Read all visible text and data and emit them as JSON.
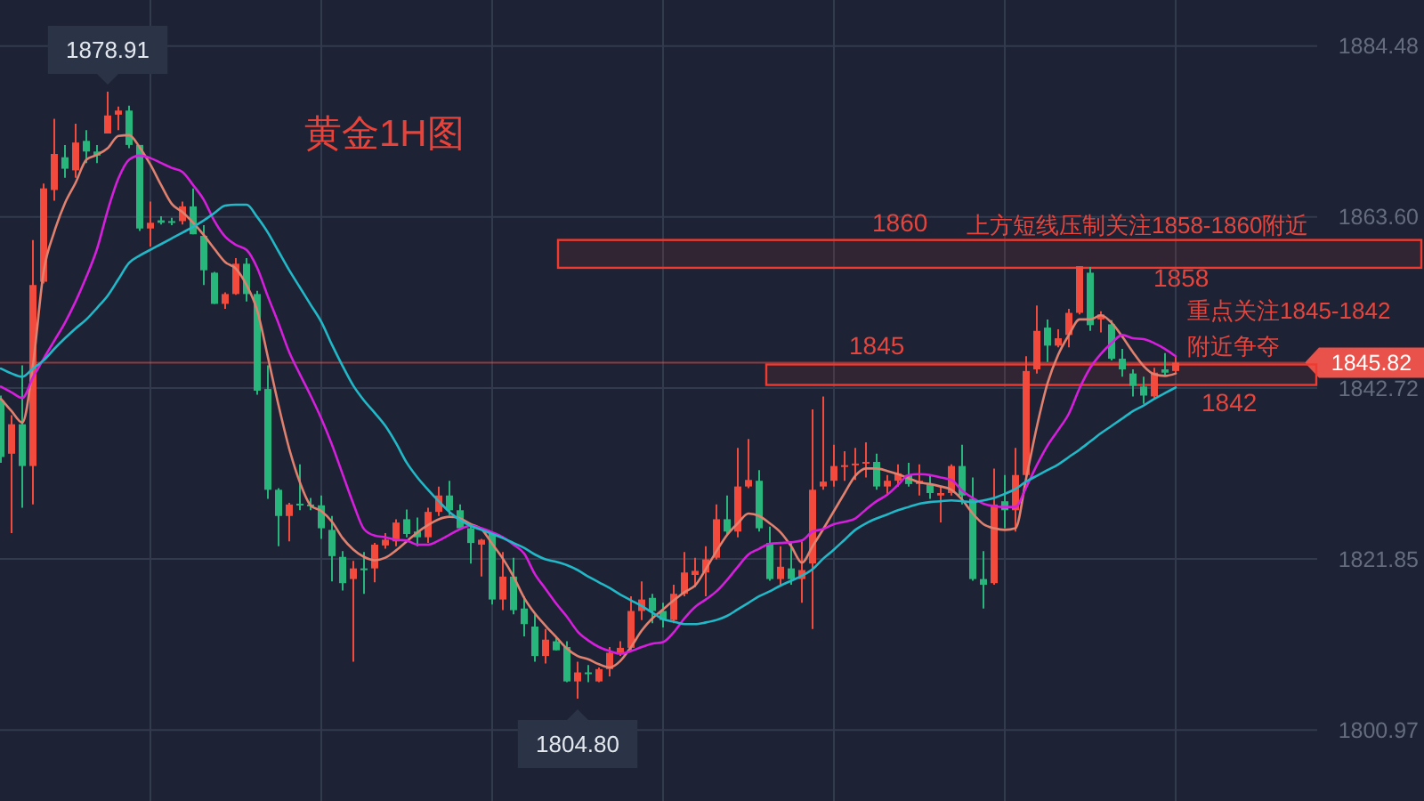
{
  "chart_data": {
    "type": "candlestick",
    "title": "黄金1H图",
    "categories": [
      null,
      null,
      null,
      null,
      null,
      null,
      null,
      null,
      null,
      null,
      null,
      null,
      null,
      null,
      null,
      null,
      null,
      null,
      null,
      null,
      null,
      null,
      null,
      null,
      null,
      null,
      null,
      null,
      null,
      null,
      null,
      null,
      null,
      null,
      null,
      null,
      null,
      null,
      null,
      null,
      null,
      null,
      null,
      null,
      null,
      null,
      null,
      null,
      null,
      null,
      null,
      null,
      null,
      null,
      null,
      null,
      null,
      null,
      null,
      null,
      null,
      null,
      null,
      null,
      null,
      null,
      null,
      null,
      null,
      null,
      null,
      null,
      null,
      null,
      null,
      null,
      null,
      null,
      null,
      null,
      null,
      null,
      null,
      null,
      null,
      null,
      null,
      null,
      null,
      null,
      null,
      null,
      null,
      null,
      null,
      null,
      null,
      null,
      null,
      null,
      null,
      null,
      null,
      null,
      null,
      null,
      null,
      null,
      null,
      null,
      null
    ],
    "ohlc": [
      [
        1841.2,
        1841.8,
        1833.6,
        1834.3
      ],
      [
        1834.7,
        1839.4,
        1825.0,
        1838.3
      ],
      [
        1838.3,
        1845.5,
        1828.1,
        1833.2
      ],
      [
        1833.2,
        1860.8,
        1828.5,
        1855.3
      ],
      [
        1855.7,
        1867.7,
        1855.5,
        1867.1
      ],
      [
        1866.9,
        1875.6,
        1865.6,
        1871.3
      ],
      [
        1870.9,
        1872.4,
        1868.4,
        1869.5
      ],
      [
        1869.3,
        1875.0,
        1868.4,
        1872.7
      ],
      [
        1872.9,
        1874.2,
        1870.2,
        1871.6
      ],
      [
        1871.6,
        1872.4,
        1870.2,
        1871.1
      ],
      [
        1873.8,
        1878.91,
        1873.8,
        1876.0
      ],
      [
        1876.1,
        1877.1,
        1874.2,
        1876.6
      ],
      [
        1876.6,
        1877.2,
        1872.0,
        1872.4
      ],
      [
        1872.4,
        1872.4,
        1861.9,
        1862.2
      ],
      [
        1862.2,
        1865.5,
        1860.0,
        1862.9
      ],
      [
        1863.2,
        1863.7,
        1862.7,
        1862.9
      ],
      [
        1863.1,
        1863.5,
        1862.6,
        1863.0
      ],
      [
        1863.1,
        1865.5,
        1862.7,
        1864.9
      ],
      [
        1864.9,
        1867.1,
        1861.5,
        1861.5
      ],
      [
        1861.3,
        1862.6,
        1855.3,
        1857.1
      ],
      [
        1856.8,
        1856.9,
        1853.0,
        1853.0
      ],
      [
        1853.0,
        1854.4,
        1852.4,
        1854.2
      ],
      [
        1854.2,
        1858.6,
        1854.1,
        1857.9
      ],
      [
        1857.9,
        1858.6,
        1853.3,
        1854.2
      ],
      [
        1854.2,
        1854.6,
        1841.9,
        1842.4
      ],
      [
        1842.6,
        1845.5,
        1829.2,
        1830.3
      ],
      [
        1830.3,
        1830.5,
        1823.4,
        1827.1
      ],
      [
        1827.1,
        1828.7,
        1824.0,
        1828.5
      ],
      [
        1828.6,
        1833.4,
        1827.8,
        1828.5
      ],
      [
        1828.5,
        1829.3,
        1827.8,
        1828.4
      ],
      [
        1828.4,
        1829.6,
        1824.3,
        1825.6
      ],
      [
        1825.4,
        1827.1,
        1819.1,
        1822.2
      ],
      [
        1822.1,
        1822.8,
        1818.0,
        1818.9
      ],
      [
        1819.4,
        1821.6,
        1809.3,
        1820.7
      ],
      [
        1820.7,
        1822.7,
        1817.6,
        1820.6
      ],
      [
        1820.7,
        1823.8,
        1819.0,
        1823.6
      ],
      [
        1823.5,
        1825.0,
        1823.1,
        1824.2
      ],
      [
        1824.0,
        1826.7,
        1823.4,
        1826.3
      ],
      [
        1826.7,
        1827.9,
        1824.5,
        1824.9
      ],
      [
        1825.2,
        1826.9,
        1823.4,
        1824.5
      ],
      [
        1824.5,
        1828.1,
        1823.8,
        1827.6
      ],
      [
        1827.6,
        1830.7,
        1827.1,
        1829.6
      ],
      [
        1829.6,
        1831.4,
        1827.2,
        1827.8
      ],
      [
        1827.8,
        1828.5,
        1825.5,
        1825.6
      ],
      [
        1825.6,
        1825.8,
        1821.3,
        1823.8
      ],
      [
        1823.6,
        1824.3,
        1819.7,
        1824.2
      ],
      [
        1825.0,
        1825.2,
        1816.3,
        1816.9
      ],
      [
        1816.9,
        1822.7,
        1815.6,
        1819.7
      ],
      [
        1819.7,
        1822.0,
        1815.1,
        1815.6
      ],
      [
        1815.8,
        1817.3,
        1812.4,
        1813.9
      ],
      [
        1813.6,
        1815.1,
        1809.3,
        1810.0
      ],
      [
        1810.0,
        1813.3,
        1809.1,
        1812.0
      ],
      [
        1811.8,
        1812.2,
        1810.7,
        1810.7
      ],
      [
        1811.1,
        1811.8,
        1806.8,
        1806.9
      ],
      [
        1806.9,
        1809.3,
        1804.8,
        1808.0
      ],
      [
        1808.0,
        1808.9,
        1806.8,
        1807.8
      ],
      [
        1806.9,
        1808.6,
        1806.8,
        1808.4
      ],
      [
        1808.4,
        1811.1,
        1807.5,
        1810.4
      ],
      [
        1810.2,
        1811.8,
        1810.0,
        1811.0
      ],
      [
        1811.0,
        1817.3,
        1810.7,
        1815.5
      ],
      [
        1815.5,
        1819.1,
        1814.4,
        1816.9
      ],
      [
        1817.1,
        1817.6,
        1814.0,
        1815.5
      ],
      [
        1815.5,
        1816.5,
        1813.5,
        1814.4
      ],
      [
        1814.4,
        1818.7,
        1814.0,
        1817.6
      ],
      [
        1817.6,
        1822.7,
        1817.3,
        1820.2
      ],
      [
        1819.9,
        1822.0,
        1818.4,
        1820.4
      ],
      [
        1820.2,
        1823.4,
        1817.3,
        1821.8
      ],
      [
        1822.0,
        1828.5,
        1821.8,
        1826.7
      ],
      [
        1826.7,
        1829.6,
        1824.9,
        1825.2
      ],
      [
        1825.2,
        1835.4,
        1824.5,
        1830.7
      ],
      [
        1830.7,
        1836.5,
        1830.5,
        1831.5
      ],
      [
        1831.4,
        1832.7,
        1825.2,
        1825.6
      ],
      [
        1823.8,
        1825.8,
        1819.2,
        1819.4
      ],
      [
        1819.4,
        1823.4,
        1818.7,
        1820.9
      ],
      [
        1820.7,
        1823.8,
        1818.7,
        1819.4
      ],
      [
        1819.4,
        1824.0,
        1816.5,
        1820.5
      ],
      [
        1821.3,
        1840.1,
        1813.3,
        1830.3
      ],
      [
        1830.7,
        1841.7,
        1830.3,
        1831.3
      ],
      [
        1831.4,
        1835.8,
        1830.7,
        1833.2
      ],
      [
        1833.1,
        1835.0,
        1831.4,
        1833.3
      ],
      [
        1833.3,
        1835.4,
        1831.5,
        1833.5
      ],
      [
        1833.6,
        1836.1,
        1831.8,
        1833.7
      ],
      [
        1833.7,
        1834.7,
        1830.3,
        1830.7
      ],
      [
        1830.7,
        1832.1,
        1829.6,
        1831.4
      ],
      [
        1831.4,
        1833.4,
        1830.7,
        1832.3
      ],
      [
        1832.1,
        1833.6,
        1830.7,
        1831.0
      ],
      [
        1831.0,
        1833.4,
        1829.6,
        1831.4
      ],
      [
        1831.0,
        1832.1,
        1829.2,
        1829.9
      ],
      [
        1829.6,
        1830.7,
        1826.3,
        1829.9
      ],
      [
        1829.9,
        1833.4,
        1829.6,
        1833.2
      ],
      [
        1833.2,
        1835.8,
        1828.5,
        1829.6
      ],
      [
        1829.2,
        1831.8,
        1819.2,
        1819.4
      ],
      [
        1819.4,
        1822.8,
        1815.8,
        1818.7
      ],
      [
        1818.9,
        1832.9,
        1818.7,
        1828.5
      ],
      [
        1828.9,
        1832.1,
        1825.6,
        1827.8
      ],
      [
        1827.8,
        1835.4,
        1825.2,
        1832.1
      ],
      [
        1832.1,
        1846.6,
        1831.8,
        1844.8
      ],
      [
        1845.0,
        1852.8,
        1844.5,
        1849.7
      ],
      [
        1850.1,
        1851.1,
        1845.9,
        1847.9
      ],
      [
        1847.9,
        1849.9,
        1847.7,
        1848.8
      ],
      [
        1849.2,
        1852.4,
        1847.7,
        1851.9
      ],
      [
        1851.9,
        1857.6,
        1851.7,
        1857.6
      ],
      [
        1856.8,
        1857.5,
        1849.7,
        1850.4
      ],
      [
        1851.1,
        1852.1,
        1849.5,
        1851.7
      ],
      [
        1850.5,
        1851.0,
        1846.1,
        1846.3
      ],
      [
        1846.3,
        1847.5,
        1844.1,
        1845.0
      ],
      [
        1844.5,
        1845.0,
        1841.7,
        1843.0
      ],
      [
        1842.9,
        1844.1,
        1840.8,
        1841.8
      ],
      [
        1841.7,
        1845.2,
        1841.5,
        1844.6
      ],
      [
        1845.0,
        1847.0,
        1844.3,
        1844.6
      ],
      [
        1844.8,
        1846.6,
        1844.6,
        1845.82
      ]
    ],
    "colors": [
      "#29b67c",
      "#f24a3d",
      "#29b67c",
      "#f24a3d",
      "#f24a3d",
      "#f24a3d",
      "#29b67c",
      "#f24a3d",
      "#29b67c",
      "#29b67c",
      "#f24a3d",
      "#f24a3d",
      "#29b67c",
      "#29b67c",
      "#f24a3d",
      "#29b67c",
      "#29b67c",
      "#f24a3d",
      "#29b67c",
      "#29b67c",
      "#29b67c",
      "#f24a3d",
      "#f24a3d",
      "#29b67c",
      "#29b67c",
      "#29b67c",
      "#29b67c",
      "#f24a3d",
      "#29b67c",
      "#29b67c",
      "#29b67c",
      "#29b67c",
      "#29b67c",
      "#f24a3d",
      "#29b67c",
      "#f24a3d",
      "#f24a3d",
      "#f24a3d",
      "#29b67c",
      "#29b67c",
      "#f24a3d",
      "#f24a3d",
      "#29b67c",
      "#29b67c",
      "#29b67c",
      "#f24a3d",
      "#29b67c",
      "#f24a3d",
      "#29b67c",
      "#29b67c",
      "#29b67c",
      "#f24a3d",
      "#29b67c",
      "#29b67c",
      "#f24a3d",
      "#29b67c",
      "#f24a3d",
      "#f24a3d",
      "#f24a3d",
      "#f24a3d",
      "#f24a3d",
      "#29b67c",
      "#29b67c",
      "#f24a3d",
      "#f24a3d",
      "#f24a3d",
      "#f24a3d",
      "#f24a3d",
      "#29b67c",
      "#f24a3d",
      "#f24a3d",
      "#29b67c",
      "#29b67c",
      "#f24a3d",
      "#29b67c",
      "#f24a3d",
      "#f24a3d",
      "#f24a3d",
      "#f24a3d",
      "#f24a3d",
      "#f24a3d",
      "#f24a3d",
      "#29b67c",
      "#f24a3d",
      "#f24a3d",
      "#29b67c",
      "#f24a3d",
      "#29b67c",
      "#f24a3d",
      "#f24a3d",
      "#29b67c",
      "#29b67c",
      "#29b67c",
      "#f24a3d",
      "#29b67c",
      "#f24a3d",
      "#f24a3d",
      "#f24a3d",
      "#29b67c",
      "#f24a3d",
      "#f24a3d",
      "#f24a3d",
      "#29b67c",
      "#f24a3d",
      "#29b67c",
      "#29b67c",
      "#29b67c",
      "#29b67c",
      "#f24a3d",
      "#29b67c",
      "#f24a3d"
    ],
    "series": [
      {
        "type": "line",
        "color": "#e0806f",
        "values": [
          1841.4,
          1839.9,
          1838.5,
          1845.5,
          1856.9,
          1861.8,
          1865.3,
          1867.8,
          1870.6,
          1871.2,
          1872.0,
          1873.5,
          1873.6,
          1872.1,
          1870.0,
          1867.5,
          1865.2,
          1864.2,
          1862.9,
          1861.4,
          1859.7,
          1858.1,
          1857.3,
          1855.3,
          1852.2,
          1846.5,
          1840.6,
          1835.3,
          1831.2,
          1828.4,
          1827.7,
          1826.4,
          1824.4,
          1823.0,
          1822.1,
          1821.7,
          1822.0,
          1822.9,
          1824.0,
          1825.1,
          1826.0,
          1826.7,
          1827.0,
          1826.8,
          1826.1,
          1825.5,
          1823.7,
          1821.9,
          1819.7,
          1817.1,
          1815.2,
          1813.7,
          1812.3,
          1810.9,
          1810.0,
          1809.6,
          1809.0,
          1808.6,
          1809.4,
          1811.1,
          1813.1,
          1814.6,
          1815.7,
          1816.8,
          1817.8,
          1818.6,
          1820.6,
          1822.8,
          1824.8,
          1826.2,
          1827.4,
          1827.1,
          1826.2,
          1825.1,
          1823.4,
          1821.4,
          1823.4,
          1825.5,
          1827.7,
          1829.9,
          1832.0,
          1832.9,
          1832.9,
          1832.6,
          1832.2,
          1831.7,
          1831.2,
          1831.0,
          1830.7,
          1830.3,
          1829.1,
          1827.4,
          1826.1,
          1825.6,
          1825.4,
          1825.6,
          1831.7,
          1838.0,
          1843.3,
          1846.8,
          1849.2,
          1851.1,
          1851.1,
          1851.6,
          1850.7,
          1849.0,
          1847.1,
          1845.4,
          1844.4,
          1844.2,
          1844.5
        ]
      },
      {
        "type": "line",
        "color": "#d61fdc",
        "values": [
          1842.9,
          1842.2,
          1841.5,
          1844.0,
          1846.3,
          1848.5,
          1850.7,
          1853.3,
          1856.3,
          1859.7,
          1864.4,
          1868.3,
          1870.6,
          1871.1,
          1870.8,
          1870.2,
          1869.6,
          1869.1,
          1867.5,
          1865.7,
          1863.1,
          1861.2,
          1860.2,
          1859.6,
          1857.4,
          1853.9,
          1850.6,
          1847.1,
          1844.4,
          1841.8,
          1839.0,
          1835.8,
          1832.2,
          1828.6,
          1825.5,
          1824.7,
          1824.5,
          1824.2,
          1824.1,
          1823.6,
          1823.6,
          1824.1,
          1824.8,
          1825.5,
          1825.9,
          1825.6,
          1825.1,
          1824.5,
          1823.6,
          1822.5,
          1820.0,
          1818.2,
          1816.4,
          1814.8,
          1813.0,
          1811.9,
          1811.1,
          1810.6,
          1810.3,
          1810.6,
          1811.1,
          1811.5,
          1811.7,
          1812.9,
          1814.6,
          1816.0,
          1816.9,
          1817.9,
          1819.3,
          1820.9,
          1822.4,
          1823.1,
          1823.7,
          1823.8,
          1823.9,
          1824.1,
          1825.2,
          1825.5,
          1826.1,
          1826.4,
          1826.8,
          1827.9,
          1828.9,
          1829.7,
          1830.9,
          1832.1,
          1832.2,
          1832.1,
          1831.8,
          1831.5,
          1830.2,
          1829.3,
          1828.6,
          1828.3,
          1828.2,
          1828.2,
          1830.6,
          1833.3,
          1835.7,
          1837.6,
          1839.6,
          1842.7,
          1845.2,
          1846.9,
          1848.2,
          1849.2,
          1848.8,
          1848.7,
          1848.2,
          1847.5,
          1846.6
        ]
      },
      {
        "type": "line",
        "color": "#22b8c8",
        "values": [
          1845.1,
          1844.5,
          1844.1,
          1845.1,
          1846.1,
          1847.5,
          1848.8,
          1850.0,
          1851.1,
          1852.5,
          1854.0,
          1856.0,
          1858.0,
          1858.9,
          1859.6,
          1860.3,
          1861.0,
          1861.7,
          1862.4,
          1863.2,
          1864.1,
          1865.0,
          1865.1,
          1865.1,
          1863.6,
          1861.7,
          1859.4,
          1857.1,
          1855.0,
          1852.9,
          1850.8,
          1848.0,
          1845.4,
          1843.0,
          1841.2,
          1839.7,
          1838.1,
          1836.0,
          1833.6,
          1831.8,
          1830.3,
          1828.9,
          1827.6,
          1826.6,
          1825.9,
          1825.4,
          1824.9,
          1824.4,
          1823.8,
          1823.2,
          1822.4,
          1821.8,
          1821.5,
          1821.1,
          1820.5,
          1819.7,
          1819.0,
          1818.3,
          1817.5,
          1816.8,
          1816.1,
          1815.3,
          1814.5,
          1814.2,
          1813.9,
          1813.9,
          1814.1,
          1814.4,
          1814.9,
          1815.7,
          1816.5,
          1817.3,
          1817.9,
          1818.6,
          1819.2,
          1819.8,
          1820.6,
          1821.9,
          1823.0,
          1824.2,
          1825.4,
          1826.2,
          1826.8,
          1827.3,
          1827.8,
          1828.2,
          1828.6,
          1828.8,
          1828.9,
          1829.0,
          1828.9,
          1828.8,
          1829.0,
          1829.3,
          1829.8,
          1830.4,
          1831.3,
          1832.0,
          1832.7,
          1833.4,
          1834.3,
          1835.2,
          1836.2,
          1837.2,
          1838.1,
          1839.0,
          1839.9,
          1840.6,
          1841.4,
          1842.1,
          1842.8
        ]
      }
    ],
    "ylim": [
      1792.3,
      1890.1
    ],
    "yticks": [
      1800.97,
      1821.85,
      1842.72,
      {
        "value": 1863.6,
        "label": "1863.60"
      },
      1884.48
    ],
    "grid": true,
    "tick_labels": "y",
    "ref_lines": [
      {
        "axis": "y",
        "value": 1845.82,
        "label": "1845.82",
        "color": "#e8524a"
      }
    ],
    "bands": [
      {
        "axis": "y",
        "from": 1857.4,
        "to": 1860.8,
        "color": "#f03a30"
      },
      {
        "axis": "y",
        "from": 1843.1,
        "to": 1845.6,
        "color": "#f03a30"
      }
    ],
    "annotations": [
      "1860",
      "上方短线压制关注1858-1860附近",
      "1858",
      "1845",
      "重点关注1845-1842附近争夺",
      "1842",
      {
        "text": "1878.91",
        "y": 1878.91
      },
      {
        "text": "1804.80",
        "y": 1804.8
      }
    ]
  }
}
